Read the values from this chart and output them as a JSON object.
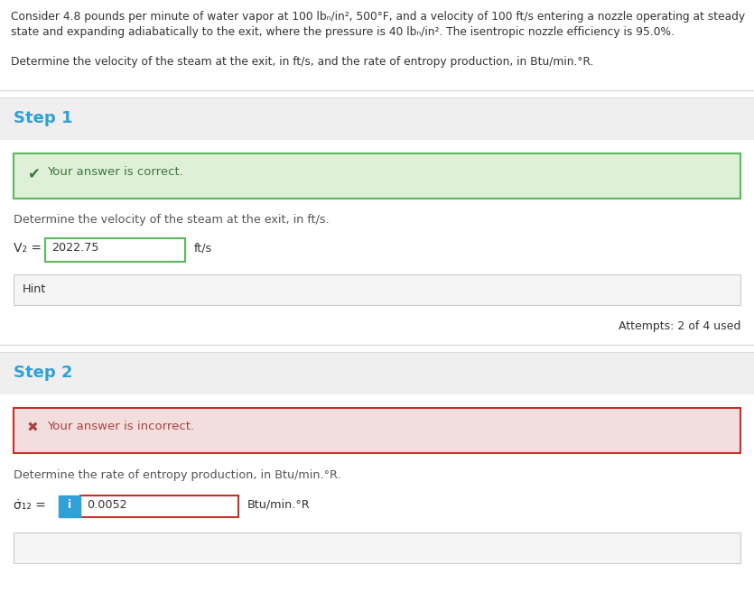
{
  "intro_line1": "Consider 4.8 pounds per minute of water vapor at 100 lbₙ/in², 500°F, and a velocity of 100 ft/s entering a nozzle operating at steady",
  "intro_line2": "state and expanding adiabatically to the exit, where the pressure is 40 lbₙ/in². The isentropic nozzle efficiency is 95.0%.",
  "question_text": "Determine the velocity of the steam at the exit, in ft/s, and the rate of entropy production, in Btu/min.°R.",
  "step1_label": "Step 1",
  "step1_correct_msg": "Your answer is correct.",
  "step1_desc": "Determine the velocity of the steam at the exit, in ft/s.",
  "step1_var": "V₂ =",
  "step1_value": "2022.75",
  "step1_unit": "ft/s",
  "step1_hint": "Hint",
  "step1_attempts": "Attempts: 2 of 4 used",
  "step2_label": "Step 2",
  "step2_incorrect_msg": "Your answer is incorrect.",
  "step2_desc": "Determine the rate of entropy production, in Btu/min.°R.",
  "step2_var": "σ̇₁₂ =",
  "step2_info": "i",
  "step2_value": "0.0052",
  "step2_unit": "Btu/min.°R",
  "white": "#ffffff",
  "section_bg": "#efefef",
  "content_bg": "#ffffff",
  "green_bg": "#dff0d8",
  "green_border": "#5cb85c",
  "green_text": "#3c763d",
  "red_bg": "#f2dede",
  "red_border": "#c9302c",
  "red_text": "#a94442",
  "blue_label": "#31a0d6",
  "dark_text": "#333333",
  "body_text": "#555555",
  "hint_bg": "#f5f5f5",
  "hint_border": "#cccccc",
  "input_green": "#5cb85c",
  "input_red": "#c9302c",
  "info_blue_bg": "#31a0d6",
  "sep_color": "#dddddd",
  "attempts_color": "#555577"
}
